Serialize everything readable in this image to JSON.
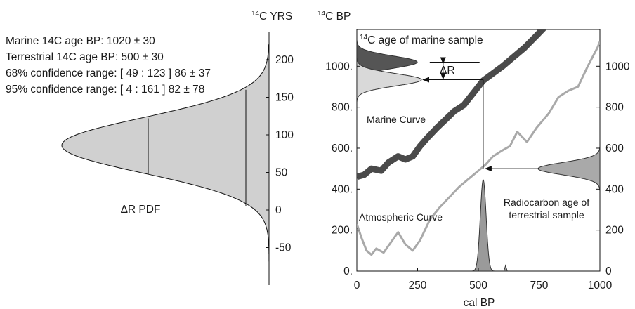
{
  "left_panel": {
    "info_lines": [
      "Marine 14C age BP: 1020 ± 30",
      "Terrestrial 14C age BP:  500 ± 30",
      "68% confidence range: [ 49 : 123 ] 86 ± 37",
      "95% confidence range: [ 4 : 161 ] 82 ± 78"
    ],
    "axis_title_sup": "14",
    "axis_title_main": "C YRS"
  },
  "right_panel": {
    "axis_title_sup": "14",
    "axis_title_main": "C BP",
    "inner_title_sup": "14",
    "inner_title_main": "C age of marine sample",
    "delta_r_label": "ΔR",
    "marine_curve_label": "Marine Curve",
    "atmospheric_curve_label": "Atmospheric Curve",
    "terrestrial_label_line1": "Radiocarbon age of",
    "terrestrial_label_line2": "terrestrial sample"
  },
  "chart_data": [
    {
      "type": "area",
      "title": "ΔR PDF",
      "ylabel": "14C YRS",
      "orientation": "horizontal",
      "ylim": [
        -100,
        220
      ],
      "yticks": [
        -50,
        0,
        50,
        100,
        150,
        200
      ],
      "ytick_labels": [
        "-50",
        "0",
        "50",
        "100",
        "150",
        "200"
      ],
      "distribution": {
        "mean": 86,
        "sigma": 37
      },
      "confidence_68": [
        49,
        123
      ],
      "confidence_95": [
        4,
        161
      ],
      "colors": {
        "fill": "#d0d0d0",
        "stroke": "#111111"
      }
    },
    {
      "type": "line",
      "xlabel": "cal BP",
      "ylabel": "14C BP",
      "xlim": [
        0,
        1000
      ],
      "ylim": [
        0,
        1200
      ],
      "xticks": [
        0,
        250,
        500,
        750,
        1000
      ],
      "xtick_labels": [
        "0",
        "250",
        "500",
        "750",
        "1000"
      ],
      "yticks_left": [
        0,
        200,
        400,
        600,
        800,
        1000
      ],
      "ytick_labels_left": [
        "0.",
        "200.",
        "400.",
        "600.",
        "800.",
        "1000."
      ],
      "yticks_right": [
        0,
        200,
        400,
        600,
        800,
        1000
      ],
      "ytick_labels_right": [
        "0",
        "200",
        "400",
        "600",
        "800",
        "1000"
      ],
      "series": [
        {
          "name": "Marine Curve",
          "color": "#4a4a4a",
          "x": [
            0,
            30,
            60,
            100,
            130,
            170,
            200,
            230,
            260,
            290,
            330,
            370,
            400,
            440,
            480,
            520,
            560,
            600,
            640,
            690,
            740,
            780
          ],
          "y": [
            460,
            470,
            500,
            490,
            530,
            560,
            545,
            560,
            610,
            650,
            700,
            745,
            780,
            810,
            870,
            930,
            965,
            1000,
            1040,
            1090,
            1150,
            1200
          ]
        },
        {
          "name": "Atmospheric Curve",
          "color": "#a9a9a9",
          "x": [
            0,
            20,
            40,
            60,
            80,
            110,
            140,
            170,
            200,
            230,
            260,
            300,
            340,
            380,
            420,
            470,
            500,
            530,
            560,
            600,
            630,
            660,
            700,
            740,
            790,
            830,
            870,
            910,
            950,
            990,
            1000
          ],
          "y": [
            230,
            160,
            100,
            80,
            110,
            90,
            140,
            190,
            130,
            100,
            150,
            250,
            310,
            360,
            410,
            460,
            490,
            520,
            560,
            590,
            610,
            680,
            630,
            700,
            770,
            850,
            880,
            900,
            1000,
            1090,
            1120
          ]
        }
      ],
      "marine_sample": {
        "mean": 1020,
        "sigma": 30,
        "color": "#555555"
      },
      "shifted_sample": {
        "mean": 934,
        "sigma": 30,
        "color": "#d9d9d9"
      },
      "terrestrial_sample": {
        "mean": 500,
        "sigma": 30,
        "color": "#a9a9a9"
      },
      "calibrated_date": {
        "mean": 520,
        "sigma": 12,
        "color": "#9a9a9a"
      }
    }
  ]
}
